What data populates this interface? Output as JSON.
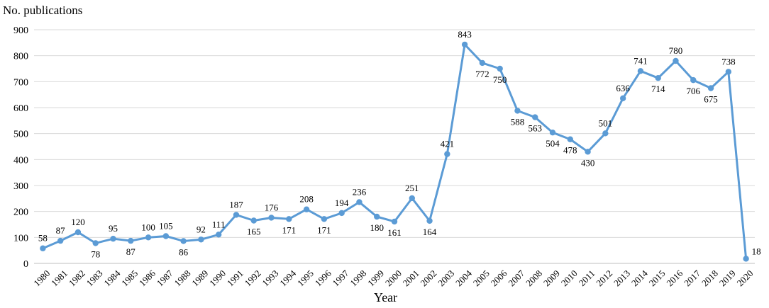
{
  "chart_data": {
    "type": "line",
    "title": "",
    "xlabel": "Year",
    "ylabel": "No. publications",
    "ylim": [
      0,
      900
    ],
    "yticks": [
      "0",
      "100",
      "200",
      "300",
      "400",
      "500",
      "600",
      "700",
      "800",
      "900"
    ],
    "grid": true,
    "legend": "none",
    "x": [
      "1980",
      "1981",
      "1982",
      "1983",
      "1984",
      "1985",
      "1986",
      "1987",
      "1988",
      "1989",
      "1990",
      "1991",
      "1992",
      "1993",
      "1994",
      "1995",
      "1996",
      "1997",
      "1998",
      "1999",
      "2000",
      "2001",
      "2002",
      "2003",
      "2004",
      "2005",
      "2006",
      "2007",
      "2008",
      "2009",
      "2010",
      "2011",
      "2012",
      "2013",
      "2014",
      "2015",
      "2016",
      "2017",
      "2018",
      "2019",
      "2020"
    ],
    "series": [
      {
        "color": "#5b9bd5",
        "values": [
          58,
          87,
          120,
          78,
          95,
          87,
          100,
          105,
          86,
          92,
          111,
          187,
          165,
          176,
          171,
          208,
          171,
          194,
          236,
          180,
          161,
          251,
          164,
          421,
          843,
          772,
          750,
          588,
          563,
          504,
          478,
          430,
          501,
          636,
          741,
          714,
          780,
          706,
          675,
          738,
          18
        ],
        "labels": [
          "58",
          "87",
          "120",
          "78",
          "95",
          "87",
          "100",
          "105",
          "86",
          "92",
          "111",
          "187",
          "165",
          "176",
          "171",
          "208",
          "171",
          "194",
          "236",
          "180",
          "161",
          "251",
          "164",
          "421",
          "843",
          "772",
          "750",
          "588",
          "563",
          "504",
          "478",
          "430",
          "501",
          "636",
          "741",
          "714",
          "780",
          "706",
          "675",
          "738",
          "18"
        ]
      }
    ]
  }
}
